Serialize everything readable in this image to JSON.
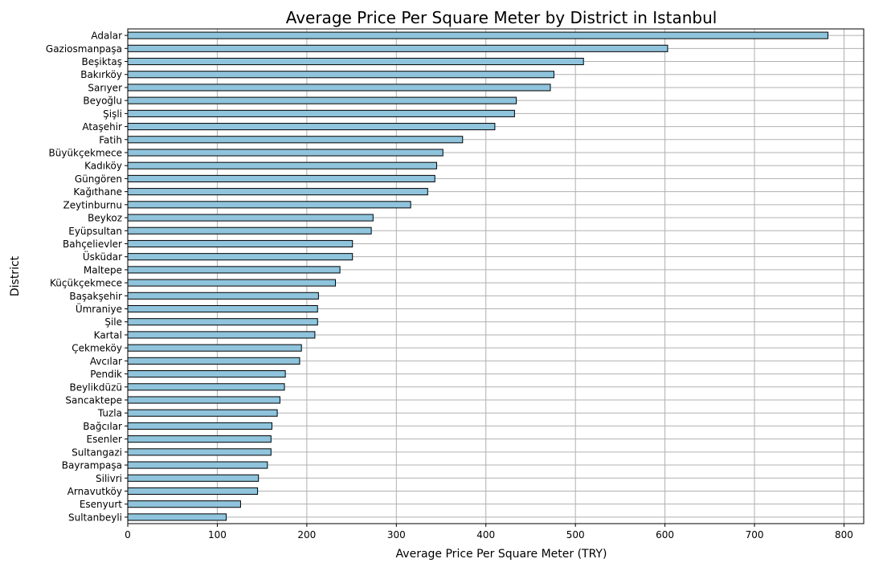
{
  "chart_data": {
    "type": "bar",
    "orientation": "horizontal",
    "title": "Average Price Per Square Meter by District in Istanbul",
    "xlabel": "Average Price Per Square Meter (TRY)",
    "ylabel": "District",
    "xlim": [
      0,
      822
    ],
    "xticks": [
      0,
      100,
      200,
      300,
      400,
      500,
      600,
      700,
      800
    ],
    "grid": true,
    "bar_color": "#8fc4dc",
    "edge_color": "#000000",
    "categories": [
      "Adalar",
      "Gaziosmanpaşa",
      "Beşiktaş",
      "Bakırköy",
      "Sarıyer",
      "Beyoğlu",
      "Şişli",
      "Ataşehir",
      "Fatih",
      "Büyükçekmece",
      "Kadıköy",
      "Güngören",
      "Kağıthane",
      "Zeytinburnu",
      "Beykoz",
      "Eyüpsultan",
      "Bahçelievler",
      "Üsküdar",
      "Maltepe",
      "Küçükçekmece",
      "Başakşehir",
      "Ümraniye",
      "Şile",
      "Kartal",
      "Çekmeköy",
      "Avcılar",
      "Pendik",
      "Beylikdüzü",
      "Sancaktepe",
      "Tuzla",
      "Bağcılar",
      "Esenler",
      "Sultangazi",
      "Bayrampaşa",
      "Silivri",
      "Arnavutköy",
      "Esenyurt",
      "Sultanbeyli"
    ],
    "values": [
      782,
      603,
      509,
      476,
      472,
      434,
      432,
      410,
      374,
      352,
      345,
      343,
      335,
      316,
      274,
      272,
      251,
      251,
      237,
      232,
      213,
      212,
      212,
      209,
      194,
      192,
      176,
      175,
      170,
      167,
      161,
      160,
      160,
      156,
      146,
      145,
      126,
      110
    ]
  }
}
